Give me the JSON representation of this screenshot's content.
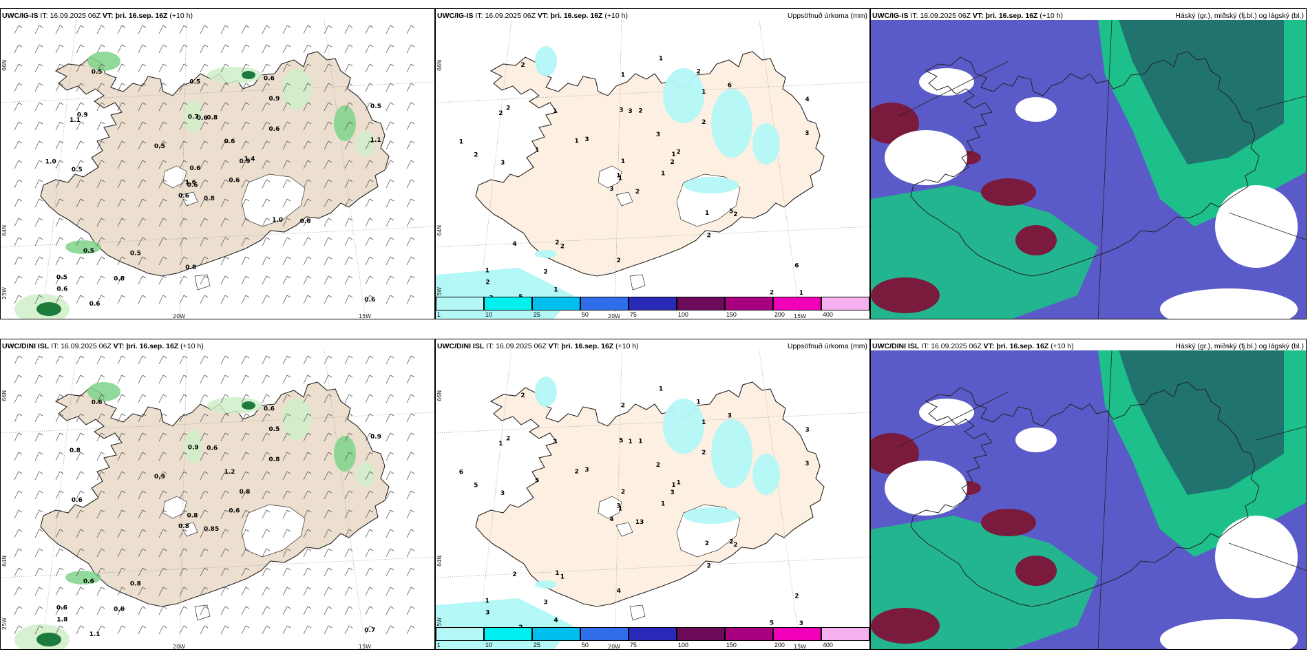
{
  "rows": [
    {
      "model": "UWC/IG-IS",
      "it_label": "IT:",
      "it_value": "16.09.2025 06Z",
      "vt_label": "VT:",
      "vt_value": "þri. 16.sep. 16Z",
      "lead": "(+10 h)"
    },
    {
      "model": "UWC/DINI ISL",
      "it_label": "IT:",
      "it_value": "16.09.2025 06Z",
      "vt_label": "VT:",
      "vt_value": "þri. 16.sep. 16Z",
      "lead": "(+10 h)"
    }
  ],
  "precip_title": "Uppsöfnuð úrkoma (mm)",
  "cloud_title": "Háský (gr.), miðský (fj.bl.) og lágský (bl.)",
  "axes": {
    "lon_labels": [
      "20W",
      "15W",
      "25W"
    ],
    "lat_labels": [
      "66N",
      "64N"
    ]
  },
  "colorbar": {
    "ticks": [
      "1",
      "10",
      "25",
      "50",
      "75",
      "100",
      "150",
      "200",
      "400"
    ],
    "colors": [
      "#b3f7f7",
      "#00f0f0",
      "#00bfee",
      "#2f6ee8",
      "#2a2ab8",
      "#6e0a5a",
      "#a8007e",
      "#f000b8",
      "#f5b0f0"
    ]
  },
  "wind_labels_top": [
    "0.8",
    "1.1",
    "0.6",
    "0.5",
    "0.5",
    "0.5",
    "0.6",
    "0.8",
    "0.9",
    "0.6",
    "0.5",
    "0.6",
    "0.5",
    "0.5",
    "0.6",
    "0.6",
    "0.6",
    "0.7",
    "0.6",
    "0.5",
    "0.5",
    "0.6",
    "0.8",
    "0.6",
    "1.4",
    "0.6",
    "0.9",
    "0.5",
    "1.0",
    "1.0",
    "1.1",
    "1.6",
    "0.8",
    "0.6"
  ],
  "wind_labels_bottom": [
    "0.85",
    "0.8",
    "0.8",
    "0.6",
    "0.8",
    "0.8",
    "0.6",
    "0.6",
    "0.5",
    "0.6",
    "0.6",
    "0.7",
    "0.6",
    "0.9",
    "0.8",
    "0.8",
    "1.1",
    "0.9",
    "1.2",
    "0.6",
    "0.9",
    "1.8",
    "0.6"
  ],
  "precip_labels_top": [
    "2",
    "2",
    "1",
    "1",
    "1",
    "2",
    "2",
    "2",
    "1",
    "1",
    "2",
    "1",
    "3",
    "4",
    "3",
    "2",
    "5",
    "3",
    "3",
    "4",
    "3",
    "2",
    "2",
    "3",
    "2",
    "2",
    "2",
    "1",
    "2",
    "1",
    "3",
    "1",
    "2",
    "1",
    "1",
    "6",
    "2",
    "2",
    "6",
    "5",
    "1",
    "1",
    "1",
    "2",
    "1",
    "1",
    "2",
    "3"
  ],
  "precip_labels_bottom": [
    "13",
    "1",
    "1",
    "1",
    "1",
    "1",
    "1",
    "1",
    "1",
    "1",
    "2",
    "3",
    "3",
    "3",
    "4",
    "2",
    "2",
    "5",
    "2",
    "2",
    "3",
    "3",
    "3",
    "1",
    "1",
    "2",
    "2",
    "2",
    "5",
    "2",
    "3",
    "3",
    "4",
    "2",
    "3",
    "3",
    "1",
    "5",
    "2",
    "2",
    "1",
    "2",
    "5",
    "2",
    "4",
    "6",
    "3"
  ],
  "colors": {
    "land": "#eddfcf",
    "precip_land": "#fdf0e2",
    "wind_green_light": "#cfeec8",
    "wind_green": "#7ed48a",
    "wind_green_dark": "#1c7a3a",
    "cloud_high": "#20736e",
    "cloud_mid": "#1dbf8a",
    "cloud_low": "#4b4bb8",
    "cloud_dark": "#7a1a3c"
  }
}
